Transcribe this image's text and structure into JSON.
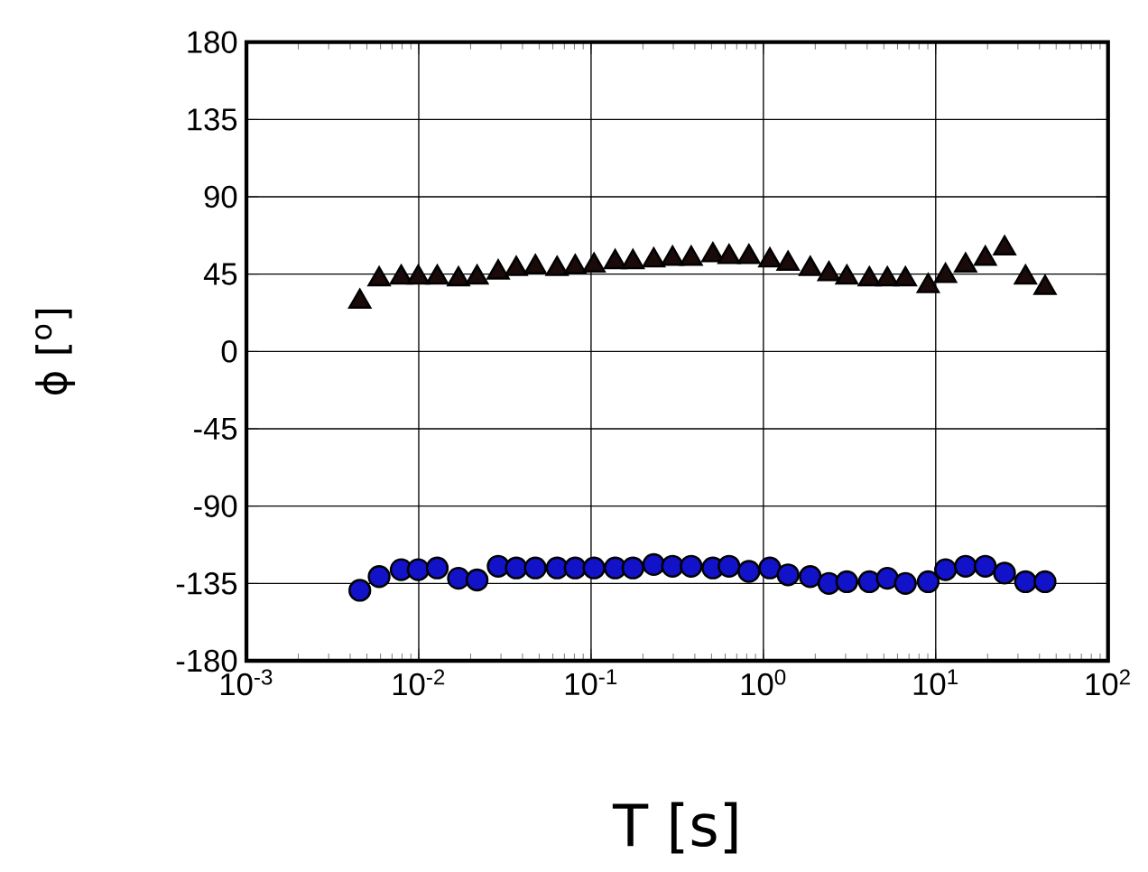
{
  "chart_data": {
    "type": "scatter",
    "xlabel": "T [s]",
    "ylabel": "ϕ [$^{o}$]",
    "log": "x",
    "grid": true,
    "x": [
      0.00455,
      0.00589,
      0.00791,
      0.00993,
      0.0128,
      0.017,
      0.0218,
      0.0289,
      0.0368,
      0.0475,
      0.0635,
      0.0809,
      0.104,
      0.138,
      0.175,
      0.231,
      0.297,
      0.381,
      0.509,
      0.632,
      0.824,
      1.09,
      1.39,
      1.87,
      2.4,
      3.05,
      4.12,
      5.24,
      6.67,
      9.04,
      11.4,
      14.9,
      19.4,
      25.1,
      33.2,
      43.1
    ],
    "series": [
      {
        "color": "#1a0a0a",
        "marker": "triangle",
        "values": [
          29,
          42,
          43,
          43,
          43,
          42,
          43,
          46,
          48,
          49,
          48,
          49,
          50,
          52,
          52,
          53,
          54,
          54,
          56,
          55,
          55,
          53,
          51,
          48,
          45,
          43,
          42,
          42,
          42,
          38,
          44,
          50,
          54,
          60,
          43,
          37
        ]
      },
      {
        "color": "#1212c8",
        "marker": "circle",
        "values": [
          -139,
          -131,
          -127,
          -127,
          -126,
          -132,
          -133,
          -125,
          -126,
          -126,
          -126,
          -126,
          -126,
          -126,
          -126,
          -124,
          -125,
          -125,
          -126,
          -125,
          -128,
          -126,
          -130,
          -131,
          -135,
          -134,
          -134,
          -132,
          -135,
          -134,
          -127,
          -125,
          -125,
          -129,
          -134,
          -134
        ]
      }
    ],
    "xlim": [
      0.001,
      100
    ],
    "xticks": [
      {
        "value": 0.001,
        "label": "10$^{-3}$"
      },
      {
        "value": 0.01,
        "label": "10$^{-2}$"
      },
      {
        "value": 0.1,
        "label": "10$^{-1}$"
      },
      {
        "value": 1,
        "label": "10$^{0}$"
      },
      {
        "value": 10,
        "label": "10$^{1}$"
      },
      {
        "value": 100,
        "label": "10$^{2}$"
      }
    ],
    "ylim": [
      -180,
      180
    ],
    "yticks": [
      -180,
      -135,
      -90,
      -45,
      0,
      45,
      90,
      135,
      180
    ]
  }
}
